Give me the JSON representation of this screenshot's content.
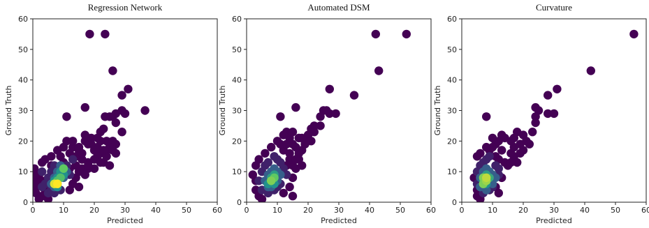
{
  "chart_data": [
    {
      "type": "scatter",
      "title": "Regression Network",
      "xlabel": "Predicted",
      "ylabel": "Ground Truth",
      "xlim": [
        0,
        60
      ],
      "ylim": [
        0,
        60
      ],
      "xticks": [
        "0",
        "10",
        "20",
        "30",
        "40",
        "50",
        "60"
      ],
      "yticks": [
        "0",
        "10",
        "20",
        "30",
        "40",
        "50",
        "60"
      ],
      "grid": false,
      "colormap": "viridis",
      "points": [
        [
          18.5,
          55,
          0
        ],
        [
          23.5,
          55,
          0
        ],
        [
          26,
          43,
          0
        ],
        [
          31,
          37,
          0
        ],
        [
          29,
          35,
          0
        ],
        [
          36.5,
          30,
          0
        ],
        [
          29,
          30,
          0
        ],
        [
          30,
          29,
          0
        ],
        [
          26,
          28,
          0
        ],
        [
          27,
          29,
          0
        ],
        [
          25,
          28,
          0
        ],
        [
          23.5,
          28,
          0
        ],
        [
          11,
          28,
          0
        ],
        [
          17,
          31,
          0
        ],
        [
          29,
          23,
          0
        ],
        [
          27,
          26,
          0
        ],
        [
          24,
          20,
          0
        ],
        [
          26,
          20,
          0
        ],
        [
          27,
          19,
          0
        ],
        [
          25,
          18,
          0
        ],
        [
          24,
          17,
          0
        ],
        [
          22,
          16,
          0
        ],
        [
          20,
          17,
          0
        ],
        [
          21,
          18,
          0
        ],
        [
          18,
          19,
          0
        ],
        [
          17,
          20,
          0
        ],
        [
          19,
          21,
          0
        ],
        [
          22,
          23,
          0
        ],
        [
          21,
          15,
          0
        ],
        [
          18,
          13,
          0
        ],
        [
          23,
          13,
          0
        ],
        [
          16,
          14,
          0
        ],
        [
          14,
          15,
          0
        ],
        [
          12,
          16,
          0
        ],
        [
          10,
          18,
          0
        ],
        [
          8,
          17,
          0
        ],
        [
          6,
          15,
          0
        ],
        [
          4,
          14,
          0
        ],
        [
          11,
          20,
          0
        ],
        [
          14,
          12,
          0
        ],
        [
          20,
          11,
          0
        ],
        [
          18,
          11,
          0
        ],
        [
          17,
          22,
          0
        ],
        [
          24,
          15,
          0
        ],
        [
          25,
          12,
          0
        ],
        [
          15,
          17,
          0
        ],
        [
          13,
          18,
          0
        ],
        [
          9,
          15,
          0
        ],
        [
          6,
          12,
          0
        ],
        [
          3,
          13,
          0
        ],
        [
          16,
          11,
          0
        ],
        [
          22,
          20,
          0
        ],
        [
          23,
          24,
          0
        ],
        [
          19,
          19,
          0
        ],
        [
          21,
          21,
          0
        ],
        [
          13,
          20,
          0
        ],
        [
          15,
          18,
          0
        ],
        [
          16,
          16,
          0
        ],
        [
          20,
          14,
          0
        ],
        [
          23,
          17,
          0
        ],
        [
          26,
          17,
          0
        ],
        [
          27,
          16,
          0
        ],
        [
          22,
          13,
          0
        ],
        [
          10,
          13,
          0
        ],
        [
          12,
          11,
          0
        ],
        [
          0.5,
          11,
          0
        ],
        [
          0.5,
          7,
          0
        ],
        [
          1,
          5,
          0
        ],
        [
          1,
          3,
          0
        ],
        [
          2,
          1,
          0
        ],
        [
          3,
          2,
          0
        ],
        [
          4,
          4,
          0
        ],
        [
          2,
          9,
          0
        ],
        [
          1,
          9,
          0
        ],
        [
          5,
          1,
          0
        ],
        [
          4,
          3,
          0
        ],
        [
          3,
          7,
          0
        ],
        [
          14,
          8,
          0
        ],
        [
          15,
          10,
          0
        ],
        [
          13,
          6,
          0
        ],
        [
          17,
          9,
          0
        ],
        [
          18,
          12,
          0
        ],
        [
          12,
          4,
          0
        ],
        [
          15,
          5,
          0
        ],
        [
          1,
          6,
          0
        ],
        [
          3,
          10,
          0.1
        ],
        [
          5,
          8,
          0.1
        ],
        [
          6,
          10,
          0.1
        ],
        [
          7,
          12,
          0.1
        ],
        [
          11,
          12,
          0.1
        ],
        [
          13,
          14,
          0.1
        ],
        [
          12,
          9,
          0.1
        ],
        [
          4,
          6,
          0.1
        ],
        [
          3,
          5,
          0.1
        ],
        [
          5,
          3,
          0.1
        ],
        [
          7,
          3,
          0.1
        ],
        [
          9,
          4,
          0.1
        ],
        [
          6,
          4,
          0.1
        ],
        [
          6,
          6,
          0.3
        ],
        [
          7,
          8,
          0.3
        ],
        [
          8,
          10,
          0.3
        ],
        [
          9,
          9,
          0.3
        ],
        [
          10,
          8,
          0.3
        ],
        [
          11,
          10,
          0.3
        ],
        [
          9,
          12,
          0.3
        ],
        [
          8,
          6,
          0.3
        ],
        [
          7,
          5,
          0.3
        ],
        [
          8,
          8,
          0.5
        ],
        [
          9,
          10,
          0.5
        ],
        [
          10,
          9,
          0.5
        ],
        [
          7,
          7,
          0.5
        ],
        [
          8,
          5,
          0.5
        ],
        [
          8,
          7,
          0.7
        ],
        [
          9,
          8,
          0.7
        ],
        [
          10,
          11,
          0.75
        ],
        [
          8,
          6,
          1.0
        ],
        [
          7,
          6,
          0.95
        ]
      ]
    },
    {
      "type": "scatter",
      "title": "Automated DSM",
      "xlabel": "Predicted",
      "ylabel": "Ground Truth",
      "xlim": [
        0,
        60
      ],
      "ylim": [
        0,
        60
      ],
      "xticks": [
        "0",
        "10",
        "20",
        "30",
        "40",
        "50",
        "60"
      ],
      "yticks": [
        "0",
        "10",
        "20",
        "30",
        "40",
        "50",
        "60"
      ],
      "grid": false,
      "colormap": "viridis",
      "points": [
        [
          42,
          55,
          0
        ],
        [
          52,
          55,
          0
        ],
        [
          43,
          43,
          0
        ],
        [
          27,
          37,
          0
        ],
        [
          35,
          35,
          0
        ],
        [
          16,
          31,
          0
        ],
        [
          25,
          30,
          0
        ],
        [
          27,
          29,
          0
        ],
        [
          29,
          29,
          0
        ],
        [
          24,
          28,
          0
        ],
        [
          26,
          30,
          0
        ],
        [
          11,
          28,
          0
        ],
        [
          24,
          25,
          0
        ],
        [
          22,
          23,
          0
        ],
        [
          20,
          22,
          0
        ],
        [
          19,
          20,
          0
        ],
        [
          21,
          20,
          0
        ],
        [
          18,
          17,
          0
        ],
        [
          17,
          16,
          0
        ],
        [
          16,
          18,
          0
        ],
        [
          15,
          19,
          0
        ],
        [
          14,
          21,
          0
        ],
        [
          13,
          23,
          0
        ],
        [
          15,
          23,
          0
        ],
        [
          17,
          14,
          0
        ],
        [
          18,
          12,
          0
        ],
        [
          15,
          12,
          0
        ],
        [
          14,
          14,
          0
        ],
        [
          16,
          11,
          0
        ],
        [
          13,
          12,
          0
        ],
        [
          12,
          17,
          0
        ],
        [
          11,
          19,
          0
        ],
        [
          10,
          20,
          0
        ],
        [
          8,
          18,
          0
        ],
        [
          6,
          16,
          0
        ],
        [
          4,
          14,
          0
        ],
        [
          3,
          12,
          0
        ],
        [
          12,
          22,
          0
        ],
        [
          13,
          19,
          0
        ],
        [
          17,
          21,
          0
        ],
        [
          19,
          19,
          0
        ],
        [
          21,
          24,
          0
        ],
        [
          22,
          25,
          0
        ],
        [
          18,
          21,
          0
        ],
        [
          14,
          16,
          0
        ],
        [
          15,
          8,
          0
        ],
        [
          14,
          5,
          0
        ],
        [
          12,
          3,
          0
        ],
        [
          15,
          2,
          0
        ],
        [
          3,
          7,
          0
        ],
        [
          2,
          9,
          0
        ],
        [
          4,
          2,
          0
        ],
        [
          5,
          1,
          0
        ],
        [
          3,
          4,
          0
        ],
        [
          16,
          14,
          0
        ],
        [
          5,
          10,
          0.1
        ],
        [
          6,
          12,
          0.1
        ],
        [
          7,
          13,
          0.1
        ],
        [
          9,
          15,
          0.1
        ],
        [
          10,
          14,
          0.1
        ],
        [
          11,
          13,
          0.1
        ],
        [
          12,
          11,
          0.1
        ],
        [
          13,
          9,
          0.1
        ],
        [
          4,
          7,
          0.1
        ],
        [
          5,
          4,
          0.1
        ],
        [
          7,
          3,
          0.1
        ],
        [
          9,
          4,
          0.1
        ],
        [
          11,
          6,
          0.1
        ],
        [
          10,
          5,
          0.1
        ],
        [
          6,
          7,
          0.3
        ],
        [
          7,
          9,
          0.3
        ],
        [
          8,
          10,
          0.3
        ],
        [
          9,
          11,
          0.3
        ],
        [
          10,
          10,
          0.3
        ],
        [
          11,
          9,
          0.3
        ],
        [
          8,
          5,
          0.3
        ],
        [
          7,
          5,
          0.3
        ],
        [
          10,
          7,
          0.3
        ],
        [
          7,
          6,
          0.5
        ],
        [
          8,
          8,
          0.55
        ],
        [
          9,
          9,
          0.55
        ],
        [
          9,
          6,
          0.5
        ],
        [
          8,
          7,
          0.8
        ],
        [
          9,
          8,
          0.75
        ]
      ]
    },
    {
      "type": "scatter",
      "title": "Curvature",
      "xlabel": "Predicted",
      "ylabel": "Ground Truth",
      "xlim": [
        0,
        60
      ],
      "ylim": [
        0,
        60
      ],
      "xticks": [
        "0",
        "10",
        "20",
        "30",
        "40",
        "50",
        "60"
      ],
      "yticks": [
        "0",
        "10",
        "20",
        "30",
        "40",
        "50",
        "60"
      ],
      "grid": false,
      "colormap": "viridis",
      "points": [
        [
          56,
          55,
          0
        ],
        [
          42,
          43,
          0
        ],
        [
          31,
          37,
          0
        ],
        [
          28,
          35,
          0
        ],
        [
          24,
          31,
          0
        ],
        [
          25,
          30,
          0
        ],
        [
          24,
          28,
          0
        ],
        [
          28,
          29,
          0
        ],
        [
          30,
          29,
          0
        ],
        [
          8,
          28,
          0
        ],
        [
          24,
          26,
          0
        ],
        [
          23,
          23,
          0
        ],
        [
          20,
          22,
          0
        ],
        [
          18,
          23,
          0
        ],
        [
          21,
          20,
          0
        ],
        [
          19,
          19,
          0
        ],
        [
          17,
          18,
          0
        ],
        [
          16,
          20,
          0
        ],
        [
          14,
          21,
          0
        ],
        [
          13,
          22,
          0
        ],
        [
          12,
          20,
          0
        ],
        [
          11,
          19,
          0
        ],
        [
          10,
          18,
          0
        ],
        [
          9,
          17,
          0
        ],
        [
          8,
          18,
          0
        ],
        [
          6,
          16,
          0
        ],
        [
          5,
          15,
          0
        ],
        [
          17,
          15,
          0
        ],
        [
          18,
          13,
          0
        ],
        [
          15,
          12,
          0
        ],
        [
          16,
          16,
          0
        ],
        [
          20,
          17,
          0
        ],
        [
          13,
          17,
          0
        ],
        [
          14,
          13,
          0
        ],
        [
          12,
          14,
          0
        ],
        [
          11,
          15,
          0
        ],
        [
          22,
          19,
          0
        ],
        [
          19,
          16,
          0
        ],
        [
          13,
          8,
          0
        ],
        [
          12,
          3,
          0
        ],
        [
          11,
          5,
          0
        ],
        [
          5,
          2,
          0
        ],
        [
          6,
          1,
          0
        ],
        [
          5,
          4,
          0
        ],
        [
          4,
          8,
          0
        ],
        [
          10,
          21,
          0
        ],
        [
          17,
          21,
          0
        ],
        [
          16,
          13,
          0
        ],
        [
          6,
          12,
          0.1
        ],
        [
          7,
          13,
          0.1
        ],
        [
          8,
          14,
          0.1
        ],
        [
          9,
          15,
          0.1
        ],
        [
          11,
          12,
          0.1
        ],
        [
          12,
          11,
          0.1
        ],
        [
          5,
          10,
          0.1
        ],
        [
          5,
          6,
          0.1
        ],
        [
          7,
          3,
          0.1
        ],
        [
          9,
          4,
          0.1
        ],
        [
          10,
          5,
          0.1
        ],
        [
          12,
          9,
          0.1
        ],
        [
          6,
          8,
          0.3
        ],
        [
          7,
          10,
          0.3
        ],
        [
          8,
          11,
          0.3
        ],
        [
          9,
          10,
          0.3
        ],
        [
          10,
          9,
          0.3
        ],
        [
          11,
          8,
          0.3
        ],
        [
          6,
          5,
          0.3
        ],
        [
          8,
          4,
          0.3
        ],
        [
          10,
          6,
          0.3
        ],
        [
          7,
          7,
          0.55
        ],
        [
          8,
          9,
          0.55
        ],
        [
          9,
          8,
          0.6
        ],
        [
          8,
          6,
          0.5
        ],
        [
          7,
          6,
          0.8
        ],
        [
          8,
          7,
          0.85
        ],
        [
          7,
          8,
          0.8
        ],
        [
          8,
          8,
          0.9
        ]
      ]
    }
  ]
}
